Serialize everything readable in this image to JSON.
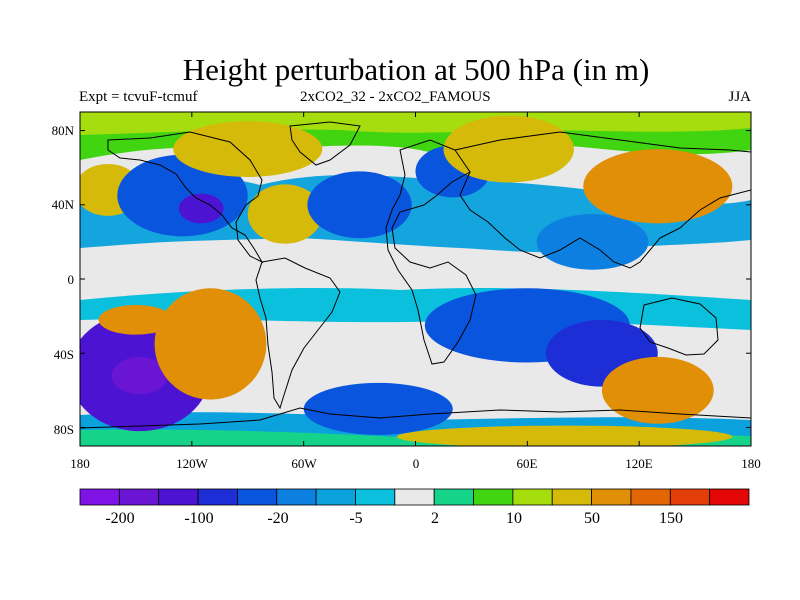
{
  "title": "Height perturbation at 500 hPa (in m)",
  "subtitle_left": "Expt = tcvuF-tcmuf",
  "subtitle_center": "2xCO2_32 - 2xCO2_FAMOUS",
  "subtitle_right": "JJA",
  "lat_ticks": [
    "80N",
    "40N",
    "0",
    "40S",
    "80S"
  ],
  "lon_ticks": [
    "180",
    "120W",
    "60W",
    "0",
    "60E",
    "120E",
    "180"
  ],
  "colorbar": {
    "colors": [
      "#7f13e6",
      "#6a14d4",
      "#4c14d2",
      "#1e2ed6",
      "#0a55dd",
      "#0d7fe0",
      "#0aa1dd",
      "#0bc0dc",
      "#e9e9e9",
      "#16d38a",
      "#41d411",
      "#a6dd0f",
      "#d6ba0a",
      "#e08f07",
      "#e36604",
      "#e33d08",
      "#e30707"
    ],
    "labels": [
      "-200",
      "-100",
      "-20",
      "-5",
      "2",
      "10",
      "50",
      "150"
    ]
  },
  "chart_data": {
    "type": "heatmap",
    "title": "Height perturbation at 500 hPa (in m)",
    "projection": "cylindrical-equidistant",
    "lon_range": [
      -180,
      180
    ],
    "lat_range": [
      -90,
      90
    ],
    "levels": [
      -200,
      -150,
      -100,
      -50,
      -20,
      -10,
      -5,
      -2,
      2,
      5,
      10,
      20,
      50,
      100,
      150,
      200
    ],
    "season": "JJA",
    "regions": [
      {
        "lon": -148,
        "lat": -50,
        "rx": 38,
        "ry": 32,
        "value": -150
      },
      {
        "lon": -148,
        "lat": -52,
        "rx": 15,
        "ry": 10,
        "value": -200
      },
      {
        "lon": -110,
        "lat": -35,
        "rx": 30,
        "ry": 30,
        "value": 50
      },
      {
        "lon": -150,
        "lat": -22,
        "rx": 20,
        "ry": 8,
        "value": 50
      },
      {
        "lon": -165,
        "lat": 48,
        "rx": 18,
        "ry": 14,
        "value": 20
      },
      {
        "lon": -125,
        "lat": 45,
        "rx": 35,
        "ry": 22,
        "value": -50
      },
      {
        "lon": -115,
        "lat": 38,
        "rx": 12,
        "ry": 8,
        "value": -150
      },
      {
        "lon": -70,
        "lat": 35,
        "rx": 20,
        "ry": 16,
        "value": 20
      },
      {
        "lon": -90,
        "lat": 70,
        "rx": 40,
        "ry": 15,
        "value": 20
      },
      {
        "lon": -30,
        "lat": 40,
        "rx": 28,
        "ry": 18,
        "value": -50
      },
      {
        "lon": 20,
        "lat": 58,
        "rx": 20,
        "ry": 14,
        "value": -50
      },
      {
        "lon": 50,
        "lat": 70,
        "rx": 35,
        "ry": 18,
        "value": 20
      },
      {
        "lon": 95,
        "lat": 20,
        "rx": 30,
        "ry": 15,
        "value": -20
      },
      {
        "lon": 130,
        "lat": 50,
        "rx": 40,
        "ry": 20,
        "value": 50
      },
      {
        "lon": 60,
        "lat": -25,
        "rx": 55,
        "ry": 20,
        "value": -50
      },
      {
        "lon": 100,
        "lat": -40,
        "rx": 30,
        "ry": 18,
        "value": -100
      },
      {
        "lon": 130,
        "lat": -60,
        "rx": 30,
        "ry": 18,
        "value": 50
      },
      {
        "lon": -20,
        "lat": -70,
        "rx": 40,
        "ry": 14,
        "value": -50
      },
      {
        "lon": 80,
        "lat": -85,
        "rx": 90,
        "ry": 6,
        "value": 20
      }
    ]
  }
}
